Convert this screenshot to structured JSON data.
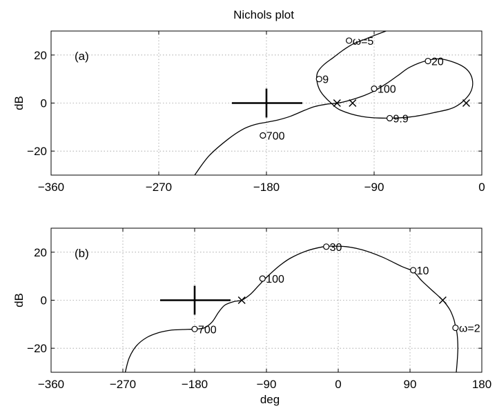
{
  "figure": {
    "title": "Nichols plot"
  },
  "chart_data": [
    {
      "type": "line",
      "panel_label": "(a)",
      "xlim": [
        -360,
        0
      ],
      "ylim": [
        -30,
        30
      ],
      "xticks": [
        -360,
        -270,
        -180,
        -90,
        0
      ],
      "xtick_labels": [
        "−360",
        "−270",
        "−180",
        "−90",
        "0"
      ],
      "yticks": [
        -20,
        0,
        20
      ],
      "ytick_labels": [
        "−20",
        "0",
        "20"
      ],
      "xlabel": "",
      "ylabel": "dB",
      "grid": true,
      "critical_point": [
        -180,
        0
      ],
      "series": [
        {
          "points": [
            [
              -240,
              -30
            ],
            [
              -228,
              -22
            ],
            [
              -212,
              -15
            ],
            [
              -200,
              -11
            ],
            [
              -190,
              -9
            ],
            [
              -180,
              -8
            ],
            [
              -170,
              -7
            ],
            [
              -160,
              -5.5
            ],
            [
              -148,
              -3
            ],
            [
              -140,
              -1.5
            ],
            [
              -130,
              -0.5
            ],
            [
              -118,
              0.2
            ],
            [
              -108,
              1.5
            ],
            [
              -98,
              3.2
            ],
            [
              -90,
              5
            ],
            [
              -80,
              8
            ],
            [
              -70,
              11.5
            ],
            [
              -60,
              15
            ],
            [
              -45,
              17.8
            ],
            [
              -32,
              18.2
            ],
            [
              -15,
              15
            ],
            [
              -8,
              10
            ],
            [
              -10,
              4
            ],
            [
              -22,
              -1.5
            ],
            [
              -40,
              -4
            ],
            [
              -60,
              -5.8
            ],
            [
              -80,
              -6.3
            ],
            [
              -100,
              -5.6
            ],
            [
              -118,
              -3
            ],
            [
              -126,
              0
            ],
            [
              -132,
              3
            ],
            [
              -136,
              6
            ],
            [
              -138,
              10
            ],
            [
              -137,
              13
            ],
            [
              -132,
              16
            ],
            [
              -124,
              19
            ],
            [
              -116,
              22
            ],
            [
              -108,
              24.5
            ],
            [
              -98,
              26.5
            ],
            [
              -88,
              28.5
            ],
            [
              -80,
              30
            ]
          ]
        }
      ],
      "markers_o": [
        {
          "x": -183,
          "y": -13.5,
          "label": "700"
        },
        {
          "x": -136,
          "y": 10,
          "label": "9"
        },
        {
          "x": -111,
          "y": 26,
          "label": "ω=5"
        },
        {
          "x": -45,
          "y": 17.5,
          "label": "20"
        },
        {
          "x": -90,
          "y": 6,
          "label": "100"
        },
        {
          "x": -77,
          "y": -6.3,
          "label": "9.9"
        }
      ],
      "markers_x": [
        [
          -121,
          0
        ],
        [
          -108,
          0
        ],
        [
          -13,
          0
        ]
      ]
    },
    {
      "type": "line",
      "panel_label": "(b)",
      "xlim": [
        -360,
        180
      ],
      "ylim": [
        -30,
        30
      ],
      "xticks": [
        -360,
        -270,
        -180,
        -90,
        0,
        90,
        180
      ],
      "xtick_labels": [
        "−360",
        "−270",
        "−180",
        "−90",
        "0",
        "90",
        "180"
      ],
      "yticks": [
        -20,
        0,
        20
      ],
      "ytick_labels": [
        "−20",
        "0",
        "20"
      ],
      "xlabel": "deg",
      "ylabel": "dB",
      "grid": true,
      "critical_point": [
        -180,
        0
      ],
      "series": [
        {
          "points": [
            [
              -267,
              -30
            ],
            [
              -262,
              -24
            ],
            [
              -253,
              -19
            ],
            [
              -240,
              -15.5
            ],
            [
              -225,
              -13.5
            ],
            [
              -210,
              -12.5
            ],
            [
              -195,
              -12.2
            ],
            [
              -180,
              -12
            ],
            [
              -168,
              -11.5
            ],
            [
              -158,
              -9
            ],
            [
              -150,
              -5
            ],
            [
              -142,
              -2
            ],
            [
              -130,
              -0.5
            ],
            [
              -121,
              0
            ],
            [
              -110,
              2.5
            ],
            [
              -100,
              6
            ],
            [
              -90,
              9.5
            ],
            [
              -75,
              14
            ],
            [
              -60,
              17.5
            ],
            [
              -40,
              20.5
            ],
            [
              -20,
              22.2
            ],
            [
              -10,
              22.5
            ],
            [
              10,
              22.3
            ],
            [
              30,
              21
            ],
            [
              55,
              18
            ],
            [
              80,
              14
            ],
            [
              94,
              12
            ],
            [
              105,
              8
            ],
            [
              118,
              4
            ],
            [
              131,
              0
            ],
            [
              140,
              -4
            ],
            [
              145,
              -8
            ],
            [
              147,
              -11
            ],
            [
              149,
              -14
            ],
            [
              150,
              -20
            ],
            [
              149,
              -26
            ],
            [
              148,
              -30
            ]
          ]
        }
      ],
      "markers_o": [
        {
          "x": -180,
          "y": -12,
          "label": "700"
        },
        {
          "x": -95,
          "y": 9,
          "label": "100"
        },
        {
          "x": -15,
          "y": 22.3,
          "label": "30"
        },
        {
          "x": 94,
          "y": 12.5,
          "label": "10"
        },
        {
          "x": 147,
          "y": -11.5,
          "label": "ω=2"
        }
      ],
      "markers_x": [
        [
          -121,
          0
        ],
        [
          131,
          0
        ]
      ]
    }
  ]
}
